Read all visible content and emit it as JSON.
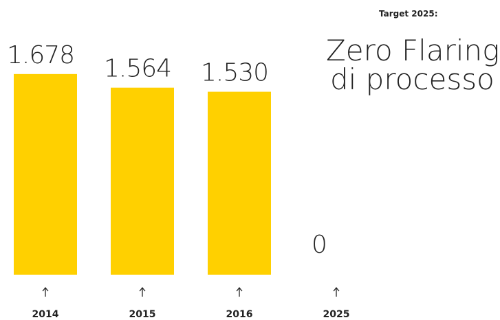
{
  "chart_data": {
    "type": "bar",
    "target_label": "Target 2025:",
    "title_lines": [
      "Zero Flaring",
      "di processo"
    ],
    "categories": [
      "2014",
      "2015",
      "2016",
      "2025"
    ],
    "values": [
      1678,
      1564,
      1530,
      0
    ],
    "value_labels": [
      "1.678",
      "1.564",
      "1.530",
      "0"
    ],
    "color": "#ffd000",
    "ylim": [
      0,
      1700
    ]
  }
}
